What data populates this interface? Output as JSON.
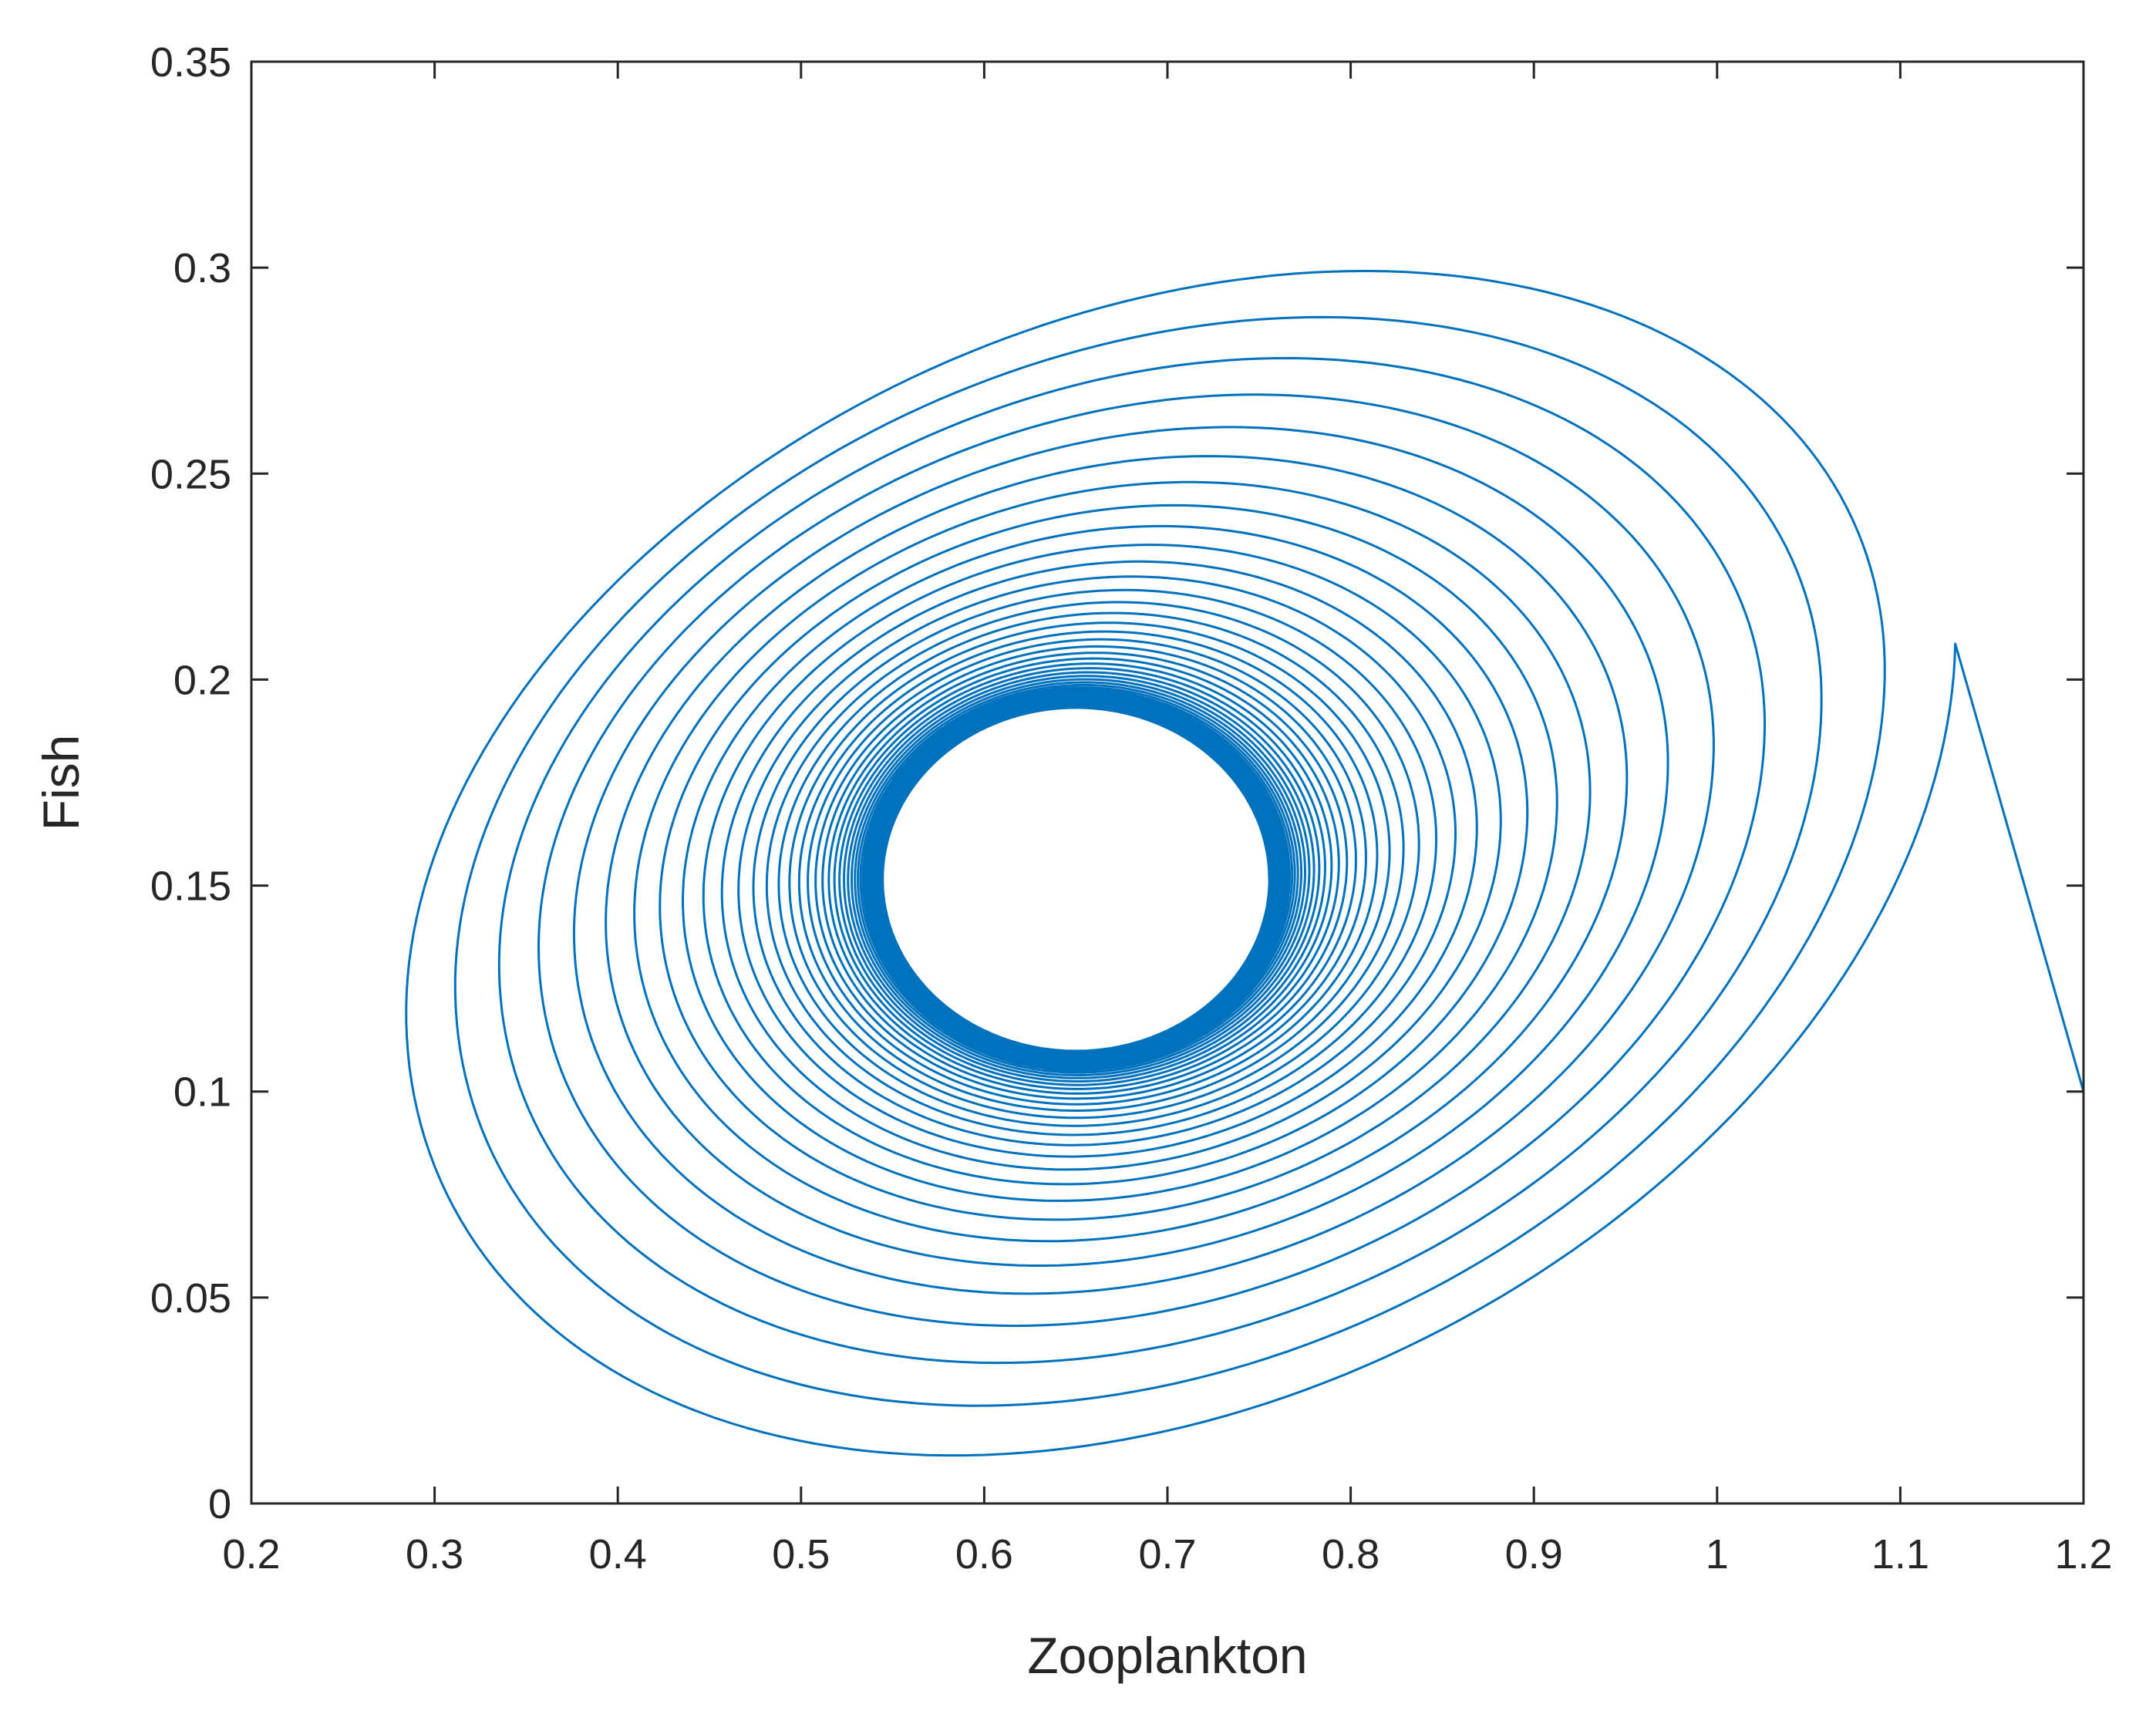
{
  "chart_data": {
    "type": "line",
    "title": "",
    "xlabel": "Zooplankton",
    "ylabel": "Fish",
    "xlim": [
      0.2,
      1.2
    ],
    "ylim": [
      0,
      0.35
    ],
    "xticks": [
      "0.2",
      "0.3",
      "0.4",
      "0.5",
      "0.6",
      "0.7",
      "0.8",
      "0.9",
      "1",
      "1.1",
      "1.2"
    ],
    "yticks": [
      "0",
      "0.05",
      "0.1",
      "0.15",
      "0.2",
      "0.25",
      "0.3",
      "0.35"
    ],
    "grid": false,
    "legend": "none",
    "series": [
      {
        "description_values": "spiral trajectory converging to a limit cycle",
        "start": {
          "x": 1.2,
          "y": 0.1
        },
        "limit_cycle": {
          "x_range": [
            0.545,
            0.755
          ],
          "y_range": [
            0.11,
            0.193
          ]
        },
        "outer_loop": {
          "x_range": [
            0.27,
            1.125
          ],
          "y_range": [
            0.033,
            0.311
          ]
        },
        "color": "#0072bd"
      }
    ]
  }
}
